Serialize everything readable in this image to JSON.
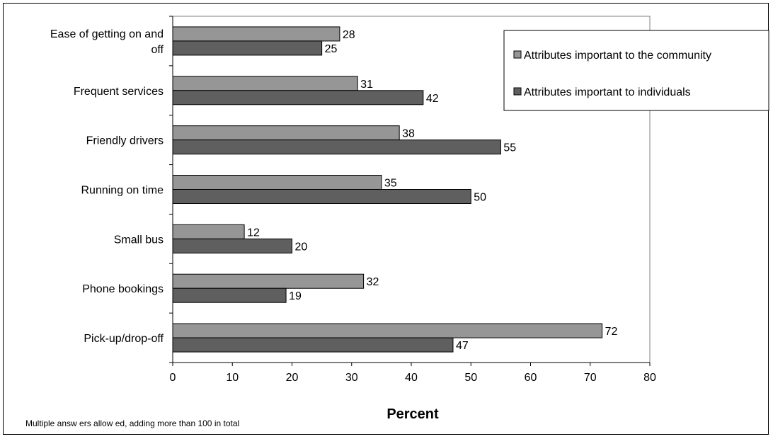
{
  "chart_data": {
    "type": "bar",
    "orientation": "horizontal",
    "categories": [
      [
        "Ease of getting on and",
        "off"
      ],
      [
        "Frequent services"
      ],
      [
        "Friendly drivers"
      ],
      [
        "Running on time"
      ],
      [
        "Small bus"
      ],
      [
        "Phone bookings"
      ],
      [
        "Pick-up/drop-off"
      ]
    ],
    "series": [
      {
        "name": "Attributes important to the community",
        "color": "#969696",
        "values": [
          28,
          31,
          38,
          35,
          12,
          32,
          72
        ],
        "labels": [
          "28",
          "31",
          "38",
          "35",
          "12",
          "32",
          "72"
        ]
      },
      {
        "name": "Attributes important to individuals",
        "color": "#5f5f5f",
        "values": [
          25,
          42,
          55,
          50,
          20,
          19,
          47
        ],
        "labels": [
          "25",
          "42",
          "55",
          "50",
          "20",
          "19",
          "47"
        ]
      }
    ],
    "xlim": [
      0,
      80
    ],
    "xticks": [
      "0",
      "10",
      "20",
      "30",
      "40",
      "50",
      "60",
      "70",
      "80"
    ],
    "xlabel": "Percent",
    "ylabel": "",
    "title": "",
    "grid": false,
    "legend_position": "top-right"
  },
  "note": "Multiple answ ers allow ed, adding more than 100 in total"
}
